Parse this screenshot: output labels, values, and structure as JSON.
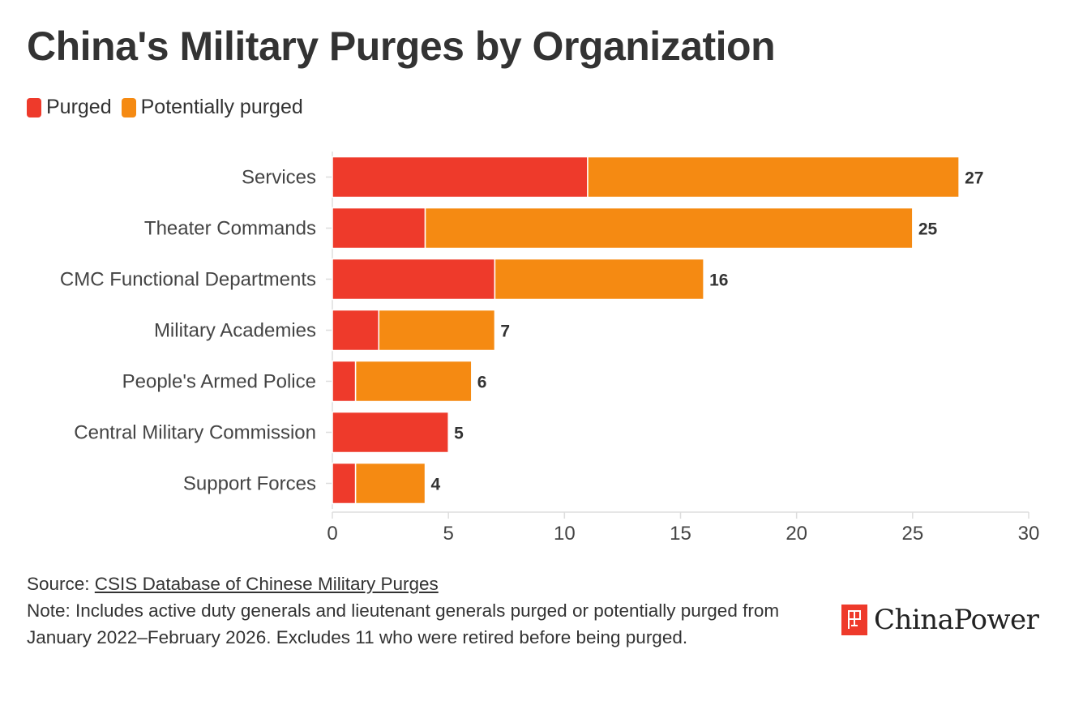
{
  "title": "China's Military Purges by Organization",
  "legend": [
    {
      "label": "Purged",
      "color": "#ee3a2b"
    },
    {
      "label": "Potentially purged",
      "color": "#f58a12"
    }
  ],
  "chart_data": {
    "type": "bar",
    "orientation": "horizontal",
    "stacked": true,
    "title": "China's Military Purges by Organization",
    "categories": [
      "Services",
      "Theater Commands",
      "CMC Functional Departments",
      "Military Academies",
      "People's Armed Police",
      "Central Military Commission",
      "Support Forces"
    ],
    "series": [
      {
        "name": "Purged",
        "color": "#ee3a2b",
        "values": [
          11,
          4,
          7,
          2,
          1,
          5,
          1
        ]
      },
      {
        "name": "Potentially purged",
        "color": "#f58a12",
        "values": [
          16,
          21,
          9,
          5,
          5,
          0,
          3
        ]
      }
    ],
    "totals": [
      27,
      25,
      16,
      7,
      6,
      5,
      4
    ],
    "xlim": [
      0,
      30
    ],
    "xticks": [
      0,
      5,
      10,
      15,
      20,
      25,
      30
    ],
    "xlabel": "",
    "ylabel": "",
    "legend_position": "top-left"
  },
  "footer": {
    "source_prefix": "Source: ",
    "source_link": "CSIS Database of Chinese Military Purges",
    "note": "Note: Includes active duty generals and lieutenant generals purged or potentially purged from January 2022–February 2026. Excludes 11 who were retired before being purged."
  },
  "logo": {
    "text": "ChinaPower",
    "color": "#ee3a2b"
  }
}
